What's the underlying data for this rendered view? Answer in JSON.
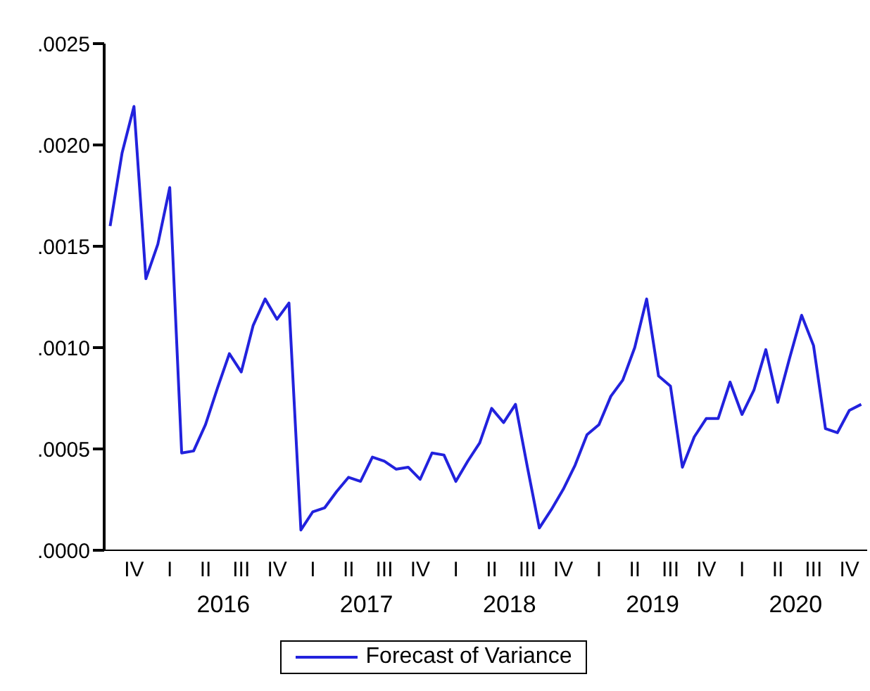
{
  "chart_data": {
    "type": "line",
    "categories": [
      null,
      null,
      "IV",
      null,
      null,
      "I",
      null,
      null,
      "II",
      null,
      null,
      "III",
      null,
      null,
      "IV",
      null,
      null,
      "I",
      null,
      null,
      "II",
      null,
      null,
      "III",
      null,
      null,
      "IV",
      null,
      null,
      "I",
      null,
      null,
      "II",
      null,
      null,
      "III",
      null,
      null,
      "IV",
      null,
      null,
      "I",
      null,
      null,
      "II",
      null,
      null,
      "III",
      null,
      null,
      "IV",
      null,
      null,
      "I",
      null,
      null,
      "II",
      null,
      null,
      "III",
      null,
      null,
      "IV",
      null
    ],
    "series": [
      {
        "name": "Forecast of Variance",
        "color": "#2222dd",
        "values": [
          0.0016,
          0.00196,
          0.00219,
          0.00134,
          0.00151,
          0.00179,
          0.00048,
          0.00049,
          0.00062,
          0.0008,
          0.00097,
          0.00088,
          0.00111,
          0.00124,
          0.00114,
          0.00122,
          0.0001,
          0.00019,
          0.00021,
          0.00029,
          0.00036,
          0.00034,
          0.00046,
          0.00044,
          0.0004,
          0.00041,
          0.00035,
          0.00048,
          0.00047,
          0.00034,
          0.00044,
          0.00053,
          0.0007,
          0.00063,
          0.00072,
          0.00041,
          0.00011,
          0.0002,
          0.0003,
          0.00042,
          0.00057,
          0.00062,
          0.00076,
          0.00084,
          0.001,
          0.00124,
          0.00086,
          0.00081,
          0.00041,
          0.00056,
          0.00065,
          0.00065,
          0.00083,
          0.00067,
          0.00079,
          0.00099,
          0.00073,
          0.00095,
          0.00116,
          0.00101,
          0.0006,
          0.00058,
          0.00069,
          0.00072
        ]
      }
    ],
    "ylim": [
      0,
      0.0025
    ],
    "yticks": [
      {
        "value": 0,
        "label": ".0000"
      },
      {
        "value": 0.0005,
        "label": ".0005"
      },
      {
        "value": 0.001,
        "label": ".0010"
      },
      {
        "value": 0.0015,
        "label": ".0015"
      },
      {
        "value": 0.002,
        "label": ".0020"
      },
      {
        "value": 0.0025,
        "label": ".0025"
      }
    ],
    "annotations": [
      "2016",
      "2017",
      "2018",
      "2019",
      "2020"
    ],
    "grid": false,
    "legend": "bottom",
    "marker": "none",
    "line_style": "solid"
  }
}
